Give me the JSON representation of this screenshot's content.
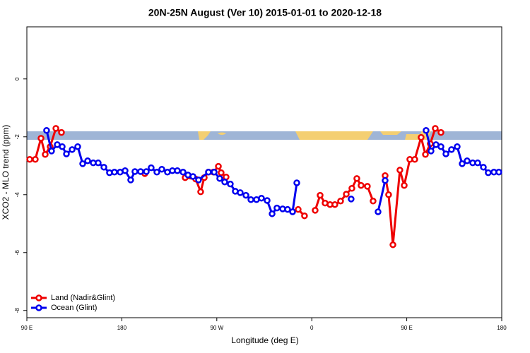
{
  "chart_data": {
    "type": "line",
    "title": "20N-25N August (Ver 10)   2015-01-01 to 2020-12-18",
    "x_label": "Longitude (deg E)",
    "y_label": "XCO2 - MLO trend (ppm)",
    "xlim": [
      90,
      540
    ],
    "ylim": [
      -8.25,
      1.8
    ],
    "xticks": [
      {
        "value": 90,
        "label": "90 E"
      },
      180,
      {
        "value": 270,
        "label": "90 W"
      },
      {
        "value": 360,
        "label": "0"
      },
      {
        "value": 450,
        "label": "90 E"
      },
      {
        "value": 540,
        "label": "180"
      }
    ],
    "yticks": [
      -8,
      -6,
      -4,
      -2,
      0
    ],
    "legend": "bottom-left",
    "series": [
      {
        "name": "Land (Nadir&Glint)",
        "color": "#ee0000",
        "x": [
          92.7,
          98.0,
          103.4,
          107.4,
          112.1,
          117.5,
          122.8,
          null,
          201.8,
          null,
          240.0,
          250.0,
          254.7,
          258.1,
          262.1,
          266.8,
          271.5,
          274.1,
          278.8,
          null,
          347.1,
          353.1,
          null,
          363.2,
          367.9,
          372.6,
          377.3,
          381.9,
          387.3,
          392.7,
          398.0,
          402.7,
          406.7,
          412.7,
          418.1,
          null,
          429.5,
          432.8,
          436.9,
          443.5,
          447.6,
          452.9,
          457.6,
          463.6,
          467.7,
          472.3,
          477.0,
          482.4
        ],
        "values": [
          -2.78,
          -2.78,
          -2.05,
          -2.61,
          -2.34,
          -1.71,
          -1.85,
          null,
          -3.27,
          null,
          -3.41,
          -3.46,
          -3.9,
          -3.41,
          -3.22,
          -3.22,
          -3.02,
          -3.24,
          -3.39,
          null,
          -4.51,
          -4.73,
          null,
          -4.54,
          -4.02,
          -4.29,
          -4.34,
          -4.34,
          -4.22,
          -3.98,
          -3.78,
          -3.44,
          -3.68,
          -3.71,
          -4.22,
          null,
          -3.34,
          -4.0,
          -5.73,
          -3.15,
          -3.68,
          -2.78,
          -2.78,
          -2.02,
          -2.61,
          -2.24,
          -1.71,
          -1.85
        ]
      },
      {
        "name": "Ocean (Glint)",
        "color": "#0000ee",
        "x": [
          108.7,
          113.4,
          118.8,
          123.5,
          127.5,
          132.9,
          138.2,
          142.9,
          147.6,
          152.9,
          157.6,
          163.0,
          168.3,
          173.0,
          178.4,
          183.1,
          188.4,
          192.4,
          197.8,
          203.2,
          207.8,
          213.2,
          217.9,
          223.2,
          227.9,
          232.6,
          238.0,
          242.7,
          247.4,
          252.7,
          262.1,
          267.5,
          272.8,
          277.5,
          282.8,
          287.5,
          292.2,
          297.6,
          302.3,
          307.6,
          312.3,
          317.7,
          322.4,
          327.0,
          332.4,
          337.1,
          341.8,
          345.8,
          null,
          397.3,
          null,
          422.8,
          429.5,
          null,
          468.3,
          473.0,
          477.7,
          482.4,
          487.1,
          492.4,
          497.8,
          502.5,
          507.2,
          512.5,
          517.2,
          522.6,
          527.2,
          532.6,
          537.3
        ],
        "values": [
          -1.78,
          -2.49,
          -2.27,
          -2.34,
          -2.59,
          -2.44,
          -2.34,
          -2.93,
          -2.83,
          -2.9,
          -2.9,
          -3.05,
          -3.24,
          -3.22,
          -3.22,
          -3.17,
          -3.49,
          -3.2,
          -3.2,
          -3.2,
          -3.07,
          -3.22,
          -3.12,
          -3.22,
          -3.17,
          -3.17,
          -3.22,
          -3.32,
          -3.37,
          -3.49,
          -3.22,
          -3.22,
          -3.44,
          -3.56,
          -3.63,
          -3.88,
          -3.93,
          -4.02,
          -4.17,
          -4.17,
          -4.12,
          -4.2,
          -4.66,
          -4.46,
          -4.49,
          -4.51,
          -4.59,
          -3.59,
          null,
          -4.15,
          null,
          -4.59,
          -3.51,
          null,
          -1.78,
          -2.49,
          -2.27,
          -2.34,
          -2.59,
          -2.44,
          -2.34,
          -2.93,
          -2.83,
          -2.9,
          -2.9,
          -3.05,
          -3.24,
          -3.22,
          -3.22
        ]
      }
    ]
  }
}
